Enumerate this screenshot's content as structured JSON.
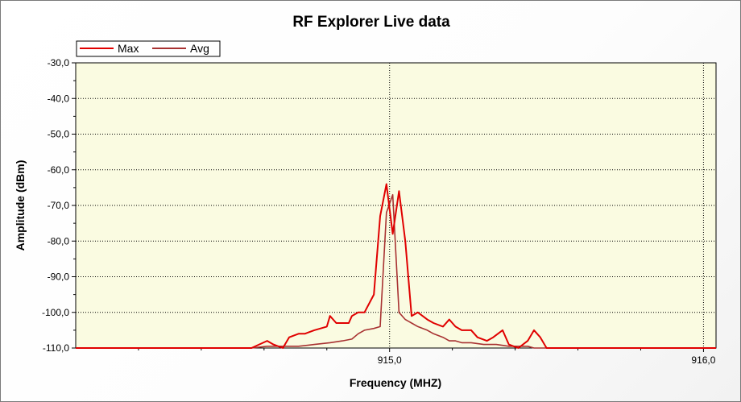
{
  "chart_data": {
    "type": "line",
    "title": "RF Explorer Live data",
    "xlabel": "Frequency (MHZ)",
    "ylabel": "Amplitude (dBm)",
    "xlim": [
      914.0,
      916.04
    ],
    "ylim": [
      -110,
      -30
    ],
    "y_ticks": [
      -30,
      -40,
      -50,
      -60,
      -70,
      -80,
      -90,
      -100,
      -110
    ],
    "y_tick_labels": [
      "-30,0",
      "-40,0",
      "-50,0",
      "-60,0",
      "-70,0",
      "-80,0",
      "-90,0",
      "-100,0",
      "-110,0"
    ],
    "x_ticks": [
      915.0,
      916.0
    ],
    "x_tick_labels": [
      "915,0",
      "916,0"
    ],
    "grid": "dotted",
    "legend_position": "top-left",
    "background": "#fafbe1",
    "series": [
      {
        "name": "Max",
        "color": "#e00000",
        "x": [
          914.0,
          914.56,
          914.61,
          914.63,
          914.66,
          914.68,
          914.71,
          914.73,
          914.76,
          914.78,
          914.8,
          914.81,
          914.83,
          914.85,
          914.87,
          914.88,
          914.9,
          914.92,
          914.95,
          914.97,
          914.99,
          915.01,
          915.03,
          915.05,
          915.07,
          915.09,
          915.12,
          915.14,
          915.17,
          915.19,
          915.21,
          915.23,
          915.26,
          915.28,
          915.31,
          915.33,
          915.36,
          915.38,
          915.41,
          915.44,
          915.46,
          915.48,
          915.5,
          915.51,
          915.53,
          915.55,
          915.58,
          915.61,
          915.64,
          916.04
        ],
        "y": [
          -110,
          -110,
          -108,
          -109,
          -110,
          -107,
          -106,
          -106,
          -105,
          -104.5,
          -104,
          -101,
          -103,
          -103,
          -103,
          -101,
          -100,
          -100,
          -95,
          -73,
          -64,
          -78,
          -66,
          -80,
          -101,
          -100,
          -102,
          -103,
          -104,
          -102,
          -104,
          -105,
          -105,
          -107,
          -108,
          -107,
          -105,
          -109,
          -110,
          -108,
          -105,
          -107,
          -110,
          -110,
          -110,
          -110,
          -110,
          -110,
          -110,
          -110
        ]
      },
      {
        "name": "Avg",
        "color": "#a83232",
        "x": [
          914.0,
          914.56,
          914.61,
          914.66,
          914.71,
          914.76,
          914.81,
          914.85,
          914.88,
          914.9,
          914.92,
          914.95,
          914.97,
          914.99,
          915.01,
          915.03,
          915.05,
          915.07,
          915.09,
          915.12,
          915.14,
          915.17,
          915.19,
          915.21,
          915.23,
          915.26,
          915.3,
          915.34,
          915.38,
          915.41,
          915.44,
          915.46,
          915.5,
          915.55,
          915.64,
          916.04
        ],
        "y": [
          -110,
          -110,
          -109.5,
          -109.5,
          -109.5,
          -109,
          -108.5,
          -108,
          -107.5,
          -106,
          -105,
          -104.5,
          -104,
          -72,
          -67,
          -100,
          -102,
          -103,
          -104,
          -105,
          -106,
          -107,
          -108,
          -108,
          -108.5,
          -108.5,
          -109,
          -109,
          -109.5,
          -109.5,
          -109.5,
          -110,
          -110,
          -110,
          -110,
          -110
        ]
      }
    ]
  }
}
